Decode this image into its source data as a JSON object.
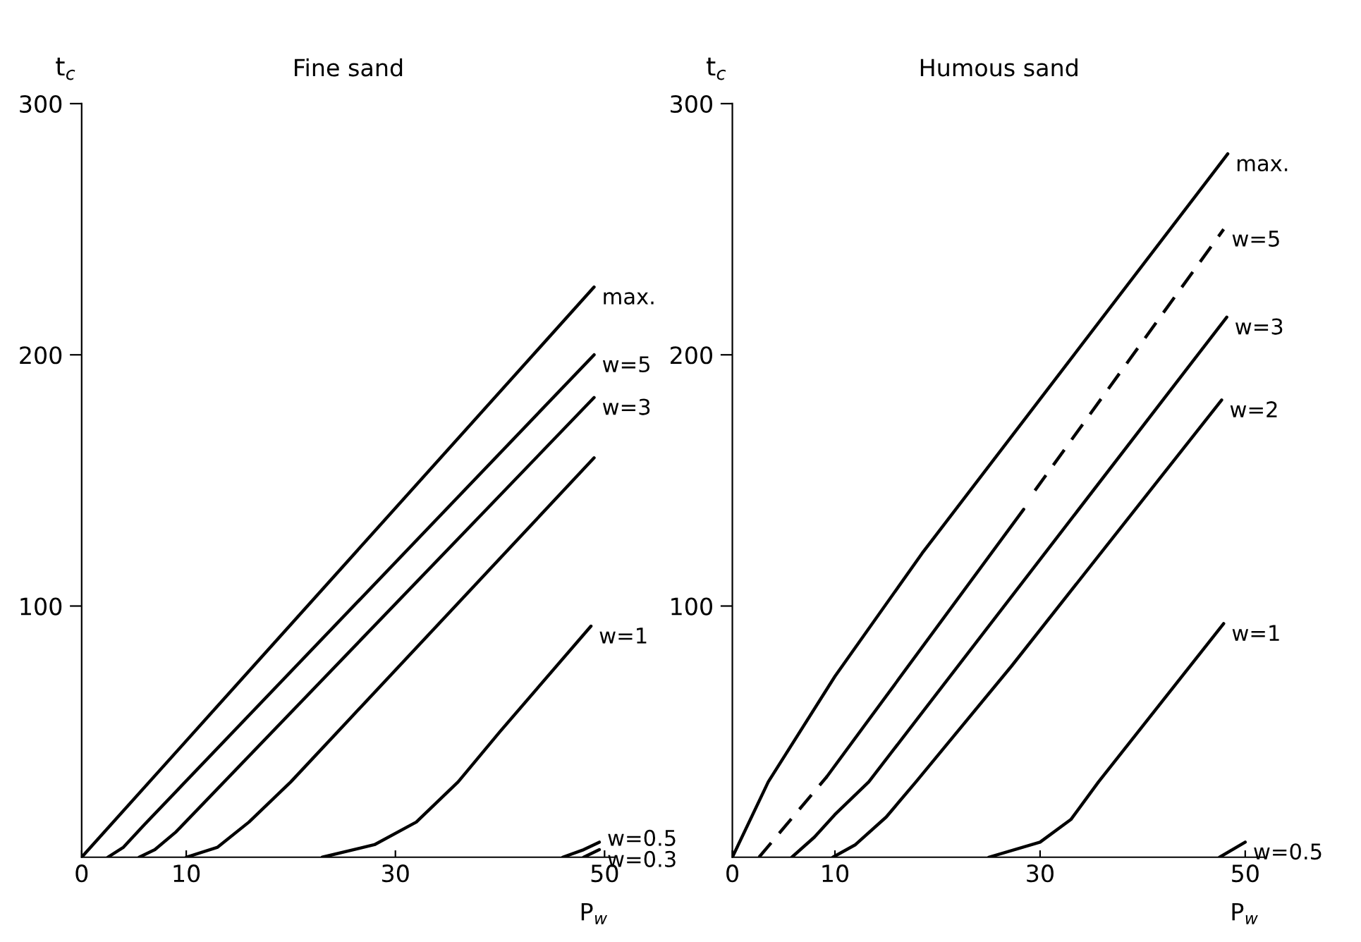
{
  "chart_data": [
    {
      "type": "line",
      "title": "Fine sand",
      "xlabel": "P$_{w}$",
      "ylabel": "t$_{c}$",
      "xlim": [
        0,
        51
      ],
      "ylim": [
        0,
        300
      ],
      "xticks": [
        0,
        10,
        30,
        50
      ],
      "yticks": [
        100,
        200,
        300
      ],
      "grid": false,
      "legend": false,
      "marker": "none",
      "series": [
        {
          "name": "max.",
          "color": "#000000",
          "line_style": "solid",
          "x": [
            0,
            49
          ],
          "values": [
            0,
            227
          ]
        },
        {
          "name": "w=5",
          "color": "#000000",
          "line_style": "solid",
          "x": [
            2.5,
            4,
            6,
            49
          ],
          "values": [
            0,
            4,
            13,
            200
          ]
        },
        {
          "name": "w=3",
          "color": "#000000",
          "line_style": "solid",
          "x": [
            5.5,
            7,
            9,
            49
          ],
          "values": [
            0,
            3,
            10,
            183
          ]
        },
        {
          "color": "#000000",
          "line_style": "solid",
          "x": [
            10,
            13,
            16,
            20,
            49
          ],
          "values": [
            0,
            4,
            14,
            30,
            159
          ]
        },
        {
          "name": "w=1",
          "color": "#000000",
          "line_style": "solid",
          "x": [
            23,
            28,
            32,
            36,
            40,
            48.7
          ],
          "values": [
            0,
            5,
            14,
            30,
            50,
            92
          ]
        },
        {
          "name": "w=0.5",
          "color": "#000000",
          "line_style": "solid",
          "x": [
            46,
            48,
            49.5
          ],
          "values": [
            0,
            3,
            6
          ]
        },
        {
          "name": "w=0.3",
          "color": "#000000",
          "line_style": "solid",
          "x": [
            48,
            49.5
          ],
          "values": [
            0,
            3
          ]
        }
      ]
    },
    {
      "type": "line",
      "title": "Humous sand",
      "xlabel": "P$_{w}$",
      "ylabel": "t$_{c}$",
      "xlim": [
        0,
        52
      ],
      "ylim": [
        0,
        300
      ],
      "xticks": [
        0,
        10,
        30,
        50
      ],
      "yticks": [
        100,
        200,
        300
      ],
      "grid": false,
      "legend": false,
      "marker": "none",
      "series": [
        {
          "name": "max.",
          "color": "#000000",
          "line_style": "solid",
          "x": [
            0,
            3.5,
            10,
            18.5,
            48.3
          ],
          "values": [
            0,
            30,
            72,
            121,
            280
          ]
        },
        {
          "color": "#000000",
          "line_style": "dashed",
          "x": [
            2.6,
            9.2
          ],
          "values": [
            0,
            32
          ]
        },
        {
          "color": "#000000",
          "line_style": "solid",
          "x": [
            9.2,
            28.4
          ],
          "values": [
            32,
            138.5
          ]
        },
        {
          "name": "w=5",
          "color": "#000000",
          "line_style": "dashed",
          "x": [
            29.5,
            47.9
          ],
          "values": [
            146,
            250
          ]
        },
        {
          "name": "w=3",
          "color": "#000000",
          "line_style": "solid",
          "x": [
            5.8,
            8,
            10,
            13.3,
            48.2
          ],
          "values": [
            0,
            8,
            17,
            30,
            215
          ]
        },
        {
          "name": "w=2",
          "color": "#000000",
          "line_style": "solid",
          "x": [
            9.8,
            12,
            15,
            17.9,
            27.2,
            47.7
          ],
          "values": [
            0,
            5,
            16,
            30,
            76,
            182
          ]
        },
        {
          "name": "w=1",
          "color": "#000000",
          "line_style": "solid",
          "x": [
            25,
            30,
            33,
            35.7,
            47.9
          ],
          "values": [
            0,
            6,
            15,
            30,
            93
          ]
        },
        {
          "name": "w=0.5",
          "color": "#000000",
          "line_style": "solid",
          "x": [
            47.5,
            50
          ],
          "values": [
            0,
            6
          ]
        }
      ]
    }
  ]
}
